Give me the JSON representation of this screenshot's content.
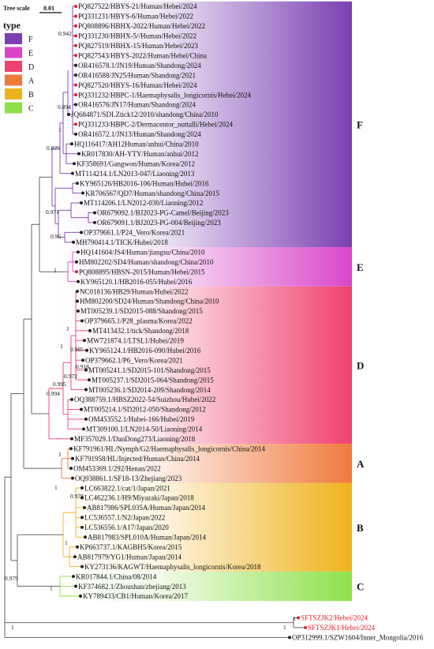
{
  "scale": {
    "title": "Tree scale",
    "value": "0.01"
  },
  "legend": {
    "title": "type",
    "items": [
      {
        "label": "F",
        "color": "#7b3fb2"
      },
      {
        "label": "E",
        "color": "#d946c9"
      },
      {
        "label": "D",
        "color": "#f0406e"
      },
      {
        "label": "A",
        "color": "#f07a3c"
      },
      {
        "label": "B",
        "color": "#f0b21c"
      },
      {
        "label": "C",
        "color": "#8ee04a"
      }
    ]
  },
  "groups": [
    {
      "label": "F",
      "color": "#7b3fb2"
    },
    {
      "label": "E",
      "color": "#d946c9"
    },
    {
      "label": "D",
      "color": "#f0406e"
    },
    {
      "label": "A",
      "color": "#f07a3c"
    },
    {
      "label": "B",
      "color": "#f0b21c"
    },
    {
      "label": "C",
      "color": "#8ee04a"
    }
  ],
  "tips": [
    {
      "label": "PQ827522/HBYS-21/Human/Hebei/2024",
      "dot": "#e0202a"
    },
    {
      "label": "PQ331231/HBYS-6/Human/Hebei/2022",
      "dot": "#e0202a"
    },
    {
      "label": "PQ808896/HBHX-2022/Human/Hebei/2022",
      "dot": "#e0202a"
    },
    {
      "label": "PQ331230/HBHX-5//Human/Hebei/2022",
      "dot": "#e0202a"
    },
    {
      "label": "PQ827519/HBHX-15/Human/Hebei/2023",
      "dot": "#e0202a"
    },
    {
      "label": "PQ827543/HBYS-2022/Human/Hebei/China",
      "dot": "#e0202a"
    },
    {
      "label": "OR416578.1/JN19/Human/Shandong/2024",
      "dot": "#222222"
    },
    {
      "label": "OR416588/JN25/Human/Shandong/2021",
      "dot": "#222222"
    },
    {
      "label": "PQ827520/HBYS-16/Human/Hebei/2024",
      "dot": "#e0202a"
    },
    {
      "label": "PQ331232/HBPC-1/Haemaphysalis_longicornis/Hebei/2024",
      "dot": "#e0202a"
    },
    {
      "label": "OR416576/JN17/Human/Shandong/2024",
      "dot": "#222222"
    },
    {
      "label": "JQ684871/SDLZtick12/2010/shandong/China/2010",
      "dot": "#222222"
    },
    {
      "label": "PQ331233/HBPC-2/Dermacentor_nuttalli/Hebei/2024",
      "dot": "#e0202a"
    },
    {
      "label": "OR416572.1/JN13/Human/Shandong/2024",
      "dot": "#222222"
    },
    {
      "label": "HQ116417/AH12Human/anhui/China/2010",
      "dot": "#222222"
    },
    {
      "label": "KR017830/AH-YTY/Human/anhui/2012",
      "dot": "#222222"
    },
    {
      "label": "KF358691/Gangwon/Human/Korea/2012",
      "dot": "#222222"
    },
    {
      "label": "MT114214.1/LN2013-047/Liaoning/2013",
      "dot": "#222222"
    },
    {
      "label": "KY965126/HB2016-106/Human/Hubei/2016",
      "dot": "#222222"
    },
    {
      "label": "KR706567/QD7/Human/shandong/China/2015",
      "dot": "#222222"
    },
    {
      "label": "MT114206.1/LN2012-030/Liaoning/2012",
      "dot": "#222222"
    },
    {
      "label": "OR679092.1/BJ2023-PG-Camel/Beijing/2023",
      "dot": "#222222"
    },
    {
      "label": "OR679091.1/BJ2023-PG-004/Beijing/2023",
      "dot": "#222222"
    },
    {
      "label": "OP379661.1/P24_Vero/Korea/2021",
      "dot": "#222222"
    },
    {
      "label": "MH790414.1/TICK/Hubei/2018",
      "dot": "#222222"
    },
    {
      "label": "HQ141604/JS4/Human/jiangsu/China/2010",
      "dot": "#222222"
    },
    {
      "label": "HM802202/SD4/Human/shandong/China/2010",
      "dot": "#222222"
    },
    {
      "label": "PQ808895/HBSN-2015/Human/Hebei/2015",
      "dot": "#e0202a"
    },
    {
      "label": "KY965120.1/HB2016-055/Hubei/2016",
      "dot": "#222222"
    },
    {
      "label": "NC018136/HB29/Human/Hubei/2022",
      "dot": "#222222"
    },
    {
      "label": "HM802200/SD24/Human/Shandong/China/2010",
      "dot": "#222222"
    },
    {
      "label": "MT005239.1/SD2015-088/Shandong/2015",
      "dot": "#222222"
    },
    {
      "label": "OP379665.1/P28_plasma/Korea/2022",
      "dot": "#222222"
    },
    {
      "label": "MT413432.1/tick/Shandong/2018",
      "dot": "#222222"
    },
    {
      "label": "MW721874.1/LTSL1/Hubei/2019",
      "dot": "#222222"
    },
    {
      "label": "KY965124.1/HB2016-090/Hubei/2016",
      "dot": "#222222"
    },
    {
      "label": "OP379662.1/P6_Vero/Korea/2021",
      "dot": "#222222"
    },
    {
      "label": "MT005241.1/SD2015-101/Shandong/2015",
      "dot": "#222222"
    },
    {
      "label": "MT005237.1/SD2015-064/Shandong/2015",
      "dot": "#222222"
    },
    {
      "label": "MT005236.1/SD2014-209/Shandong/2014",
      "dot": "#222222"
    },
    {
      "label": "OQ388759.1/HBSZ2022-54/Suizhou/Hubei/2022",
      "dot": "#222222"
    },
    {
      "label": "MT005214.1/SD2012-050/Shandong/2012",
      "dot": "#222222"
    },
    {
      "label": "OM453552.1/Hubei-166/Hubei/2019",
      "dot": "#222222"
    },
    {
      "label": "MT309100.1/LN2014-50/Liaoning/2014",
      "dot": "#222222"
    },
    {
      "label": "MF357029.1/DanDong273/Liaoning/2018",
      "dot": "#222222"
    },
    {
      "label": "KF791961/HL/Nymph/G2/Haemaphysalis_longicornis/China/2014",
      "dot": "#222222"
    },
    {
      "label": "KF791958/HL/Injected/Human/China/2014",
      "dot": "#222222"
    },
    {
      "label": "OM453369.1/292/Henan/2022",
      "dot": "#222222"
    },
    {
      "label": "OQ938861.1/SF18-13/Zhejiang/2023",
      "dot": "#222222"
    },
    {
      "label": "LC663822.1/cat/1/Japan/2021",
      "dot": "#222222"
    },
    {
      "label": "LC462236.1/H9/Miyazaki/Japan/2018",
      "dot": "#222222"
    },
    {
      "label": "AB817986/SPL035A/Human/Japan/2014",
      "dot": "#222222"
    },
    {
      "label": "LC536557.1/N2/Japan/2022",
      "dot": "#222222"
    },
    {
      "label": "LC536556.1/A17/Japan/2020",
      "dot": "#222222"
    },
    {
      "label": "AB817983/SPL010A/Human/Japan/2014",
      "dot": "#222222"
    },
    {
      "label": "KP663737.1/KAGBH5/Korea/2015",
      "dot": "#222222"
    },
    {
      "label": "AB817979/YG1/Human/Japan/2014",
      "dot": "#222222"
    },
    {
      "label": "KY273136/KAGWT/Haemaphysalis_longicornis/Korea/2018",
      "dot": "#222222"
    },
    {
      "label": "KR017844.1/China/08/2014",
      "dot": "#222222"
    },
    {
      "label": "KF374682.1/Zhoushan/zhejiang/2013",
      "dot": "#222222"
    },
    {
      "label": "KY789433/CB1/Human/Korea/2017",
      "dot": "#222222"
    },
    {
      "label": "SFTSZJK2/Hebei/2024",
      "dot": "#e0202a",
      "red": true
    },
    {
      "label": "SFTSZJK1/Hebei/2024",
      "dot": "#e0202a",
      "red": true
    },
    {
      "label": "OP312999.1/SZW1604/Inner_Mongolia/2016",
      "dot": "#222222"
    }
  ],
  "bootstrap": [
    "0.942",
    "0.894",
    "1",
    "0.825",
    "0.971",
    "0.96",
    "1",
    "1",
    "1",
    "1",
    "0.985",
    "0.972",
    "0.918",
    "0.995",
    "0.994",
    "1",
    "1",
    "0.978",
    "1",
    "0.979",
    "1",
    "1",
    "1"
  ]
}
